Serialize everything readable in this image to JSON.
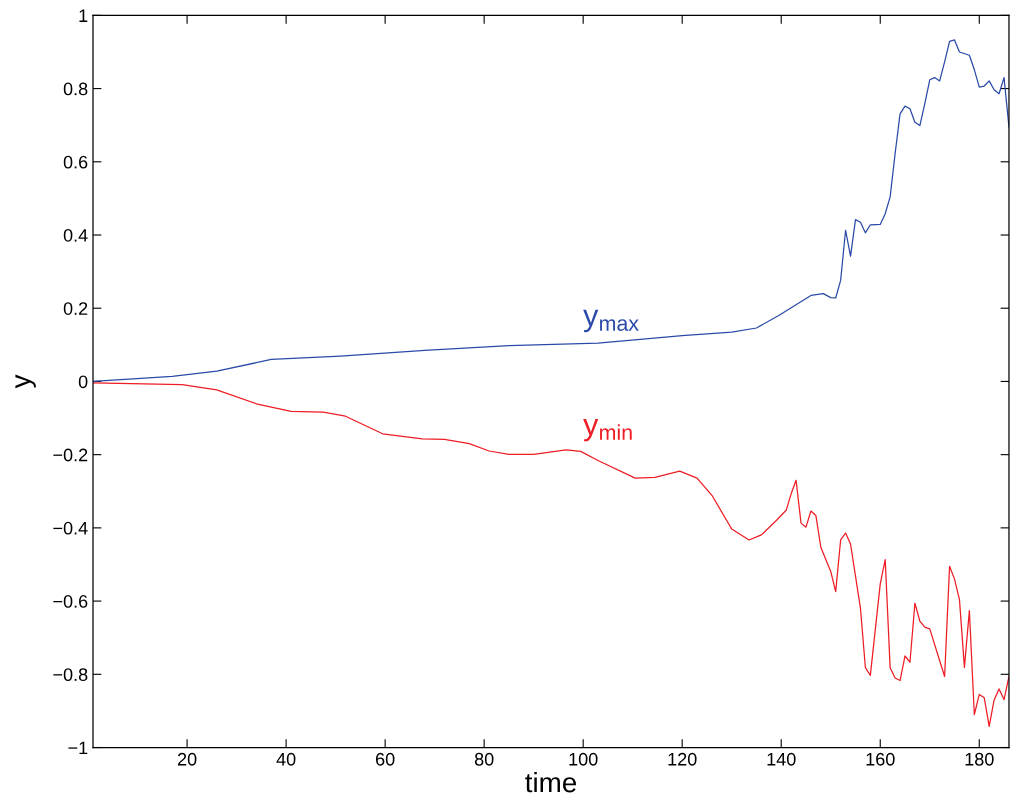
{
  "chart_data": {
    "type": "line",
    "xlabel": "time",
    "ylabel": "y",
    "xlim": [
      1,
      186
    ],
    "ylim": [
      -1,
      1
    ],
    "xticks": [
      20,
      40,
      60,
      80,
      100,
      120,
      140,
      160,
      180
    ],
    "yticks": [
      {
        "value": -1,
        "label": "−1"
      },
      {
        "value": -0.8,
        "label": "−0.8"
      },
      {
        "value": -0.6,
        "label": "−0.6"
      },
      {
        "value": -0.4,
        "label": "−0.4"
      },
      {
        "value": -0.2,
        "label": "−0.2"
      },
      0,
      0.2,
      0.4,
      0.6,
      0.8,
      1
    ],
    "grid": false,
    "marker": "none",
    "line_style": "solid",
    "series": [
      {
        "name": "y$_{max}$",
        "color": "#2a4aa8",
        "x": [
          1,
          17,
          26,
          37,
          51,
          68,
          85,
          103,
          120,
          130,
          135,
          139.5,
          146,
          148.5,
          150,
          151,
          152,
          153,
          154,
          155,
          156,
          157,
          158,
          160,
          161,
          162,
          163,
          164,
          165,
          166,
          167,
          168,
          169,
          170,
          171,
          172,
          173,
          174,
          175,
          176,
          178,
          179,
          180,
          181,
          182,
          183,
          184,
          185,
          186
        ],
        "values": [
          0,
          0.014,
          0.028,
          0.06,
          0.069,
          0.085,
          0.098,
          0.105,
          0.125,
          0.135,
          0.146,
          0.18,
          0.235,
          0.24,
          0.229,
          0.228,
          0.276,
          0.413,
          0.342,
          0.442,
          0.435,
          0.406,
          0.428,
          0.429,
          0.458,
          0.504,
          0.622,
          0.731,
          0.752,
          0.745,
          0.708,
          0.699,
          0.759,
          0.824,
          0.83,
          0.821,
          0.873,
          0.929,
          0.933,
          0.9,
          0.891,
          0.852,
          0.804,
          0.807,
          0.821,
          0.797,
          0.786,
          0.83,
          0.695
        ]
      },
      {
        "name": "y$_{min}$",
        "color": "#ee1c24",
        "x": [
          1,
          19,
          26,
          34,
          41,
          47.5,
          52,
          59.5,
          67.5,
          72,
          77,
          81,
          85,
          90,
          96.5,
          99.5,
          103,
          110.5,
          114.5,
          119.5,
          123,
          126,
          130,
          133.5,
          136,
          139,
          141,
          142,
          143,
          144,
          145,
          146,
          147,
          148,
          150,
          151,
          152,
          153,
          154,
          156,
          157,
          158,
          160,
          161,
          162,
          163,
          164,
          165,
          166,
          167,
          168,
          169,
          170,
          173,
          174,
          175,
          176,
          177,
          178,
          179,
          180,
          181,
          182,
          183,
          184,
          185,
          186
        ],
        "values": [
          -0.004,
          -0.009,
          -0.023,
          -0.061,
          -0.082,
          -0.084,
          -0.095,
          -0.143,
          -0.157,
          -0.158,
          -0.17,
          -0.19,
          -0.199,
          -0.199,
          -0.187,
          -0.191,
          -0.216,
          -0.264,
          -0.262,
          -0.245,
          -0.264,
          -0.311,
          -0.403,
          -0.433,
          -0.419,
          -0.38,
          -0.352,
          -0.307,
          -0.27,
          -0.387,
          -0.398,
          -0.354,
          -0.366,
          -0.453,
          -0.519,
          -0.574,
          -0.433,
          -0.414,
          -0.444,
          -0.619,
          -0.782,
          -0.803,
          -0.553,
          -0.487,
          -0.782,
          -0.81,
          -0.817,
          -0.75,
          -0.767,
          -0.606,
          -0.655,
          -0.671,
          -0.676,
          -0.806,
          -0.505,
          -0.54,
          -0.596,
          -0.781,
          -0.626,
          -0.91,
          -0.855,
          -0.864,
          -0.942,
          -0.87,
          -0.84,
          -0.869,
          -0.806
        ]
      }
    ]
  }
}
